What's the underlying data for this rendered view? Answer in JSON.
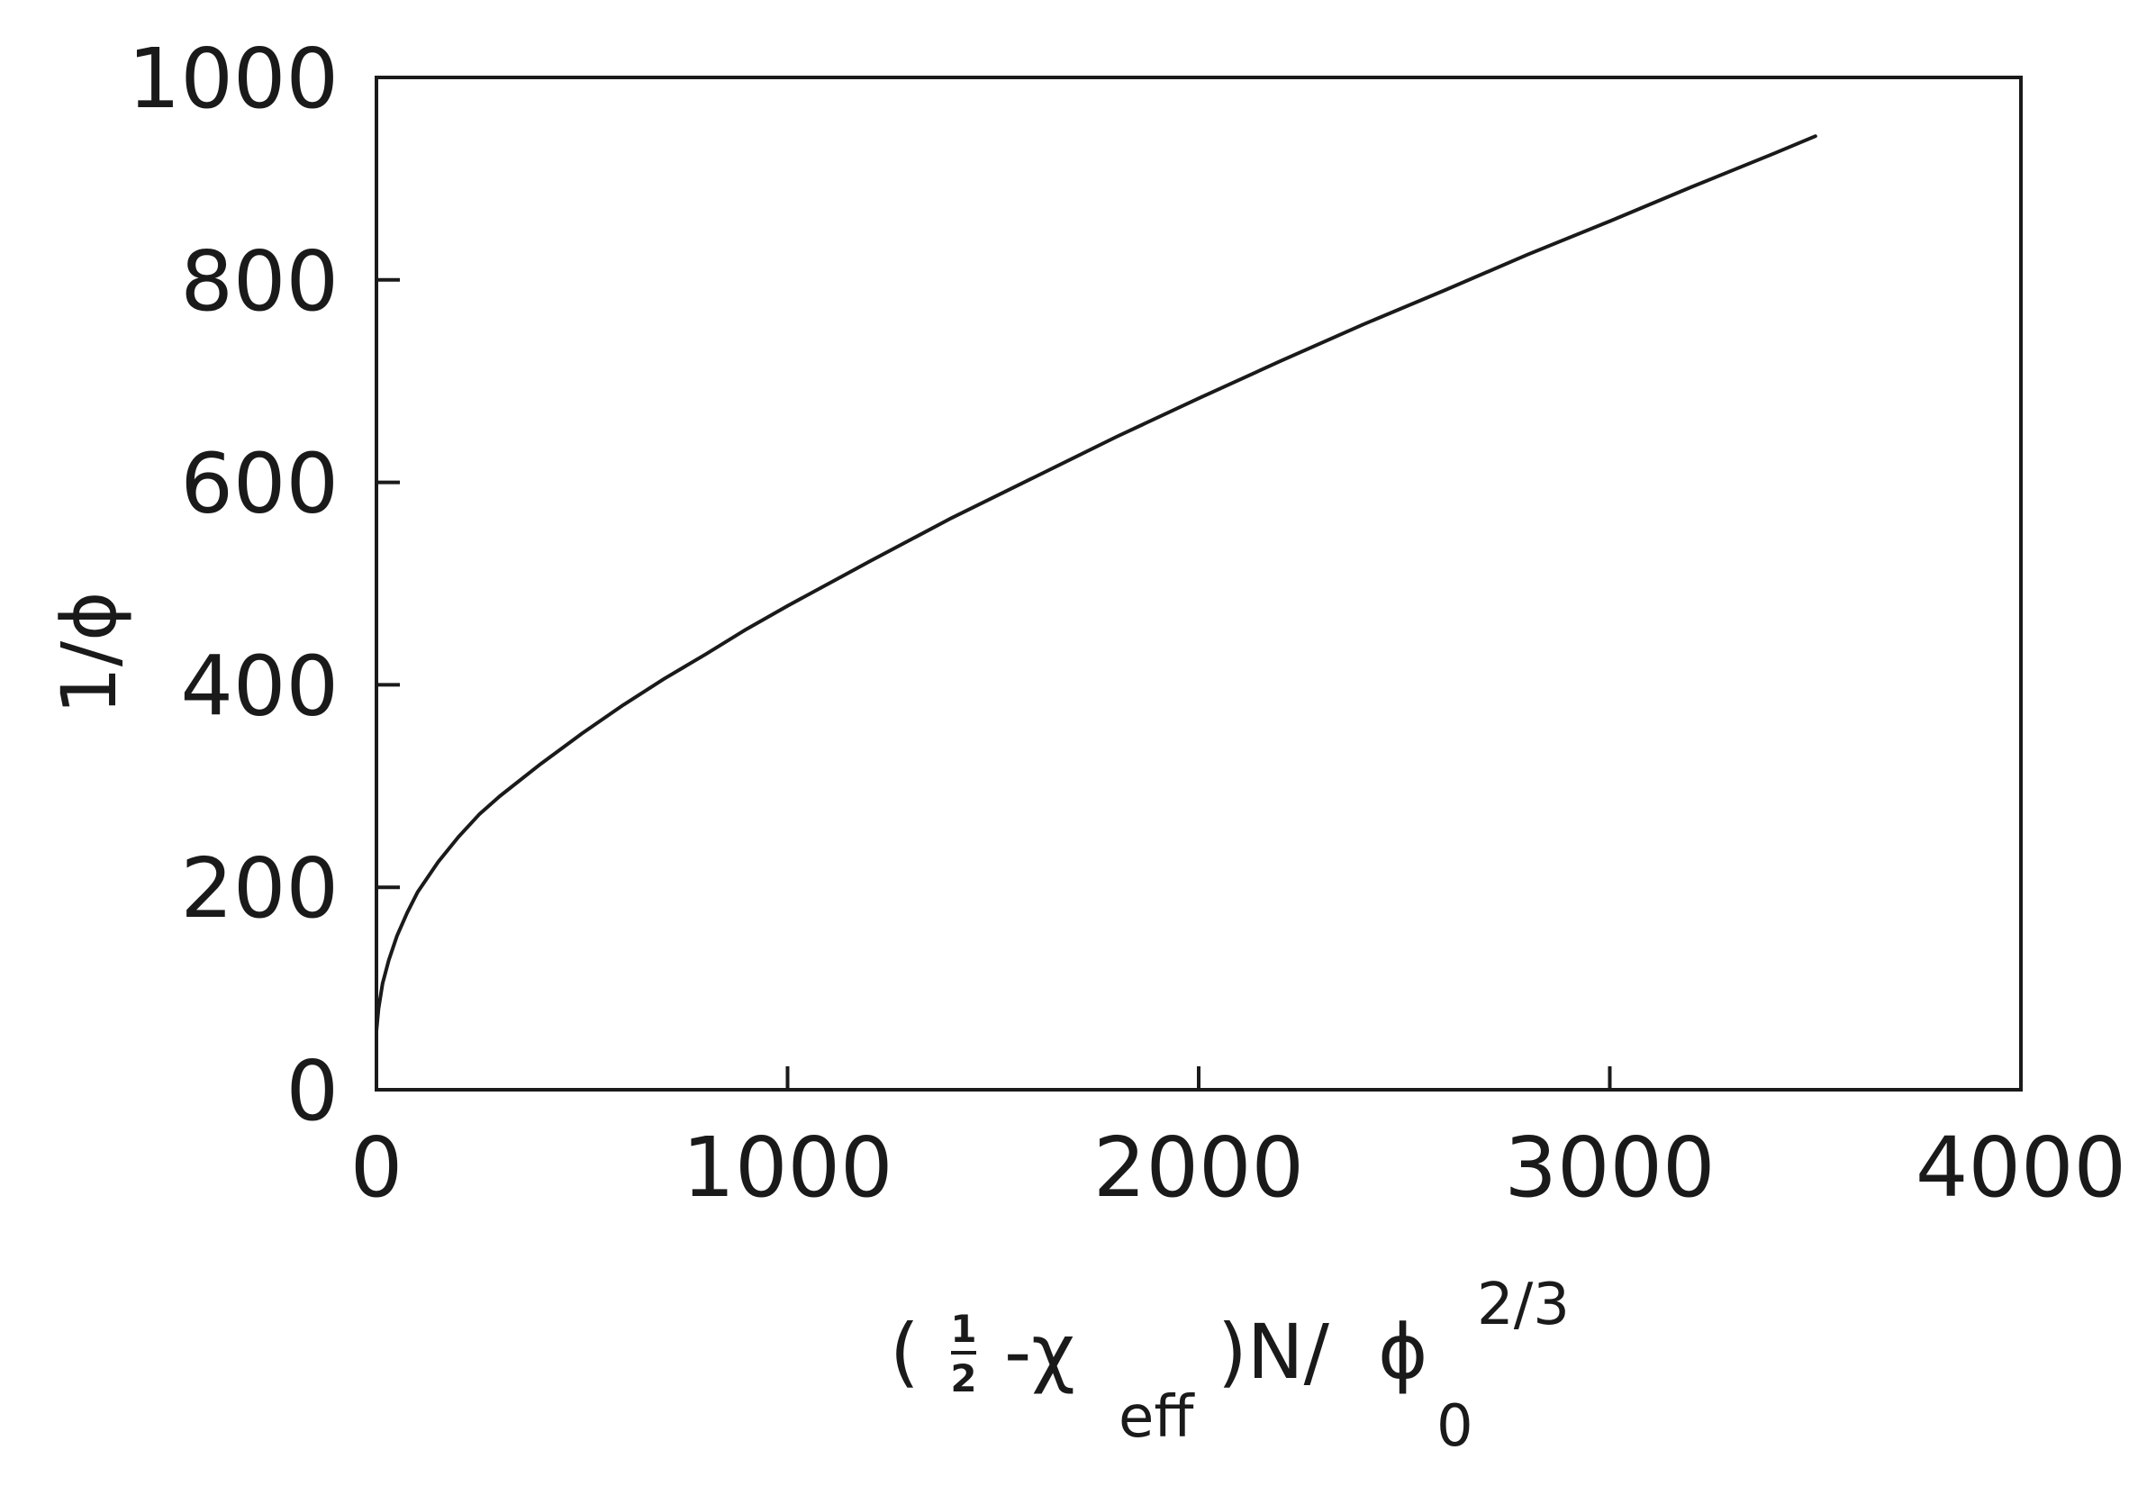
{
  "chart_data": {
    "type": "line",
    "title": "",
    "xlabel": {
      "frac_numerator": "1",
      "frac_denominator": "2",
      "chi": "-χ",
      "chi_subscript": "eff",
      "after_paren": ")N/",
      "phi": "ϕ",
      "phi_subscript": "0",
      "superscript": "2/3",
      "open_paren": "("
    },
    "ylabel": "1/ϕ",
    "xlim": [
      0,
      4000
    ],
    "ylim": [
      0,
      1000
    ],
    "x_ticks": [
      "0",
      "1000",
      "2000",
      "3000",
      "4000"
    ],
    "y_ticks": [
      "0",
      "200",
      "400",
      "600",
      "800",
      "1000"
    ],
    "x_tick_values": [
      0,
      1000,
      2000,
      3000,
      4000
    ],
    "y_tick_values": [
      0,
      200,
      400,
      600,
      800,
      1000
    ],
    "grid": false,
    "series": [
      {
        "x": [
          0,
          5,
          15,
          30,
          50,
          75,
          100,
          150,
          200,
          250,
          300,
          400,
          500,
          600,
          700,
          800,
          900,
          1000,
          1200,
          1400,
          1600,
          1800,
          2000,
          2200,
          2400,
          2600,
          2800,
          3000,
          3200,
          3400,
          3500
        ],
        "y": [
          58,
          80,
          105,
          128,
          152,
          175,
          195,
          225,
          250,
          272,
          290,
          322,
          352,
          380,
          406,
          430,
          455,
          478,
          522,
          565,
          605,
          645,
          683,
          720,
          756,
          790,
          825,
          858,
          892,
          925,
          942
        ]
      }
    ]
  }
}
